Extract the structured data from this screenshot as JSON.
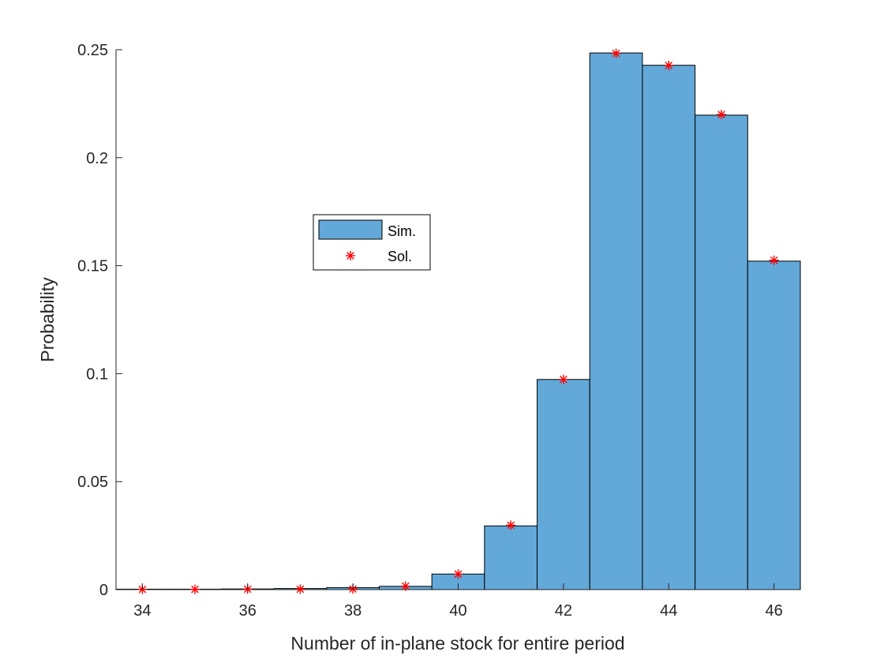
{
  "chart_data": {
    "type": "bar",
    "xlabel": "Number of in-plane stock for entire period",
    "ylabel": "Probability",
    "xlim": [
      33.5,
      46.5
    ],
    "ylim": [
      0,
      0.25
    ],
    "xticks": [
      34,
      36,
      38,
      40,
      42,
      44,
      46
    ],
    "xtick_labels": [
      "34",
      "36",
      "38",
      "40",
      "42",
      "44",
      "46"
    ],
    "yticks": [
      0,
      0.05,
      0.1,
      0.15,
      0.2,
      0.25
    ],
    "ytick_labels": [
      "0",
      "0.05",
      "0.1",
      "0.15",
      "0.2",
      "0.25"
    ],
    "categories": [
      34,
      35,
      36,
      37,
      38,
      39,
      40,
      41,
      42,
      43,
      44,
      45,
      46
    ],
    "grid": false,
    "legend_position": "upper-left-center",
    "series": [
      {
        "name": "Sim.",
        "kind": "histogram",
        "color": "#62A8D8",
        "edge_color": "#000000",
        "values": [
          0.0002,
          0.0002,
          0.0003,
          0.0005,
          0.0009,
          0.0015,
          0.0072,
          0.0295,
          0.0973,
          0.2485,
          0.2428,
          0.2197,
          0.1521
        ]
      },
      {
        "name": "Sol.",
        "kind": "marker",
        "marker": "asterisk",
        "color": "#FF0000",
        "values": [
          0.0001,
          0.0001,
          0.0002,
          0.0002,
          0.0003,
          0.0016,
          0.0072,
          0.0298,
          0.0973,
          0.2483,
          0.2427,
          0.22,
          0.1525
        ]
      }
    ]
  }
}
